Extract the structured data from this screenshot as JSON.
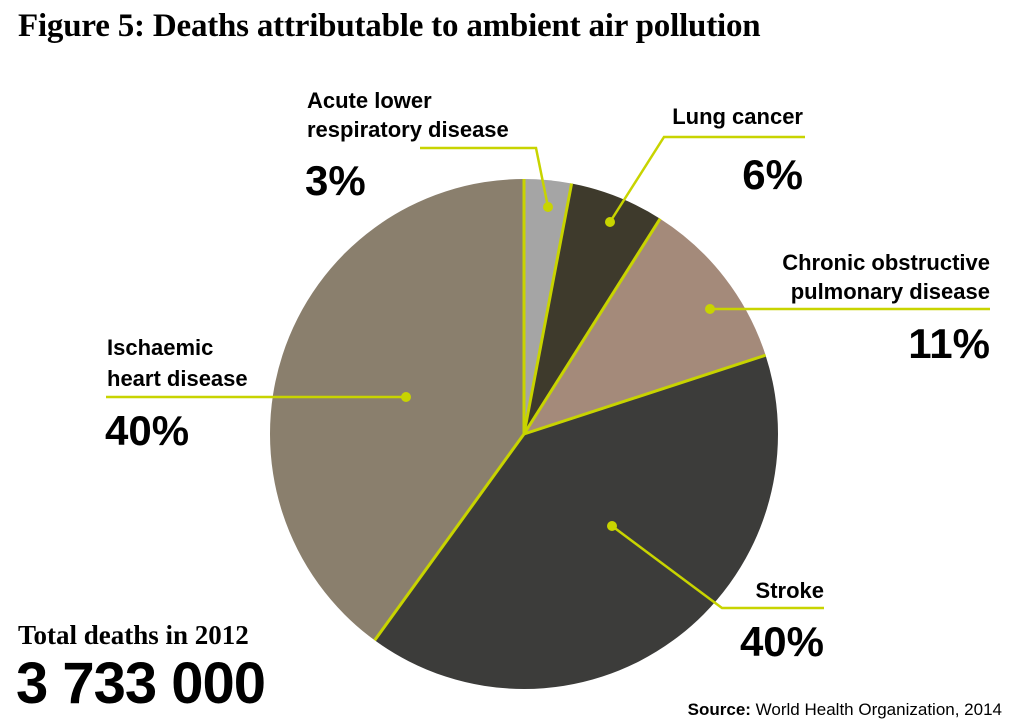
{
  "title": "Figure 5: Deaths attributable to ambient air pollution",
  "total": {
    "label": "Total deaths in 2012",
    "value": "3 733 000"
  },
  "source": {
    "label": "Source:",
    "text": "World Health Organization, 2014"
  },
  "colors": {
    "leader": "#c8d400",
    "divider": "#c8d400"
  },
  "chart_data": {
    "type": "pie",
    "slices": [
      {
        "name": "Acute lower respiratory disease",
        "label_lines": [
          "Acute lower",
          "respiratory disease"
        ],
        "value": 3,
        "value_label": "3%",
        "color": "#a5a5a5"
      },
      {
        "name": "Lung cancer",
        "label_lines": [
          "Lung cancer"
        ],
        "value": 6,
        "value_label": "6%",
        "color": "#3e3a2c"
      },
      {
        "name": "Chronic obstructive pulmonary disease",
        "label_lines": [
          "Chronic obstructive",
          "pulmonary disease"
        ],
        "value": 11,
        "value_label": "11%",
        "color": "#a48a7a"
      },
      {
        "name": "Stroke",
        "label_lines": [
          "Stroke"
        ],
        "value": 40,
        "value_label": "40%",
        "color": "#3c3c3a"
      },
      {
        "name": "Ischaemic heart disease",
        "label_lines": [
          "Ischaemic",
          "heart disease"
        ],
        "value": 40,
        "value_label": "40%",
        "color": "#8a7f6d"
      }
    ]
  }
}
